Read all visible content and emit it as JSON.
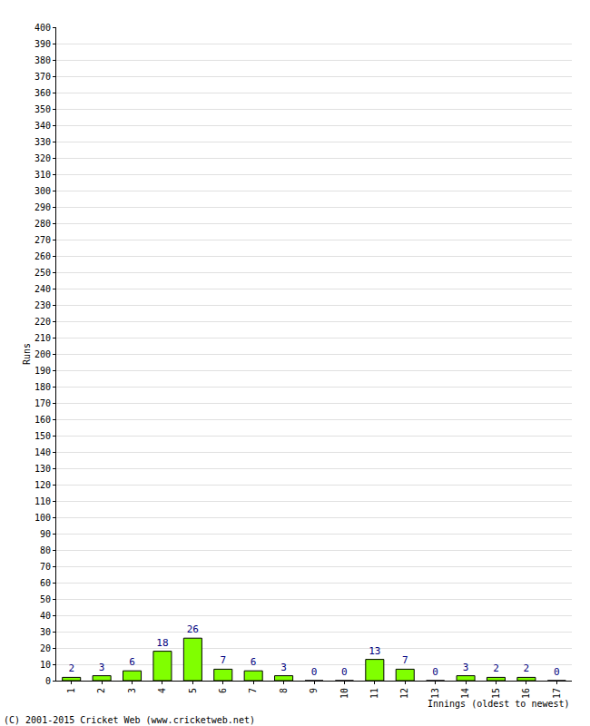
{
  "chart_data": {
    "type": "bar",
    "ylabel": "Runs",
    "xlabel": "Innings (oldest to newest)",
    "annotations": [
      "(C) 2001-2015 Cricket Web (www.cricketweb.net)"
    ],
    "categories": [
      "1",
      "2",
      "3",
      "4",
      "5",
      "6",
      "7",
      "8",
      "9",
      "10",
      "11",
      "12",
      "13",
      "14",
      "15",
      "16",
      "17"
    ],
    "values": [
      2,
      3,
      6,
      18,
      26,
      7,
      6,
      3,
      0,
      0,
      13,
      7,
      0,
      3,
      2,
      2,
      0
    ],
    "color": "#80ff00",
    "data_labels": true,
    "ylim": [
      0,
      400
    ],
    "yticks": [
      0,
      10,
      20,
      30,
      40,
      50,
      60,
      70,
      80,
      90,
      100,
      110,
      120,
      130,
      140,
      150,
      160,
      170,
      180,
      190,
      200,
      210,
      220,
      230,
      240,
      250,
      260,
      270,
      280,
      290,
      300,
      310,
      320,
      330,
      340,
      350,
      360,
      370,
      380,
      390,
      400
    ],
    "grid": true
  }
}
